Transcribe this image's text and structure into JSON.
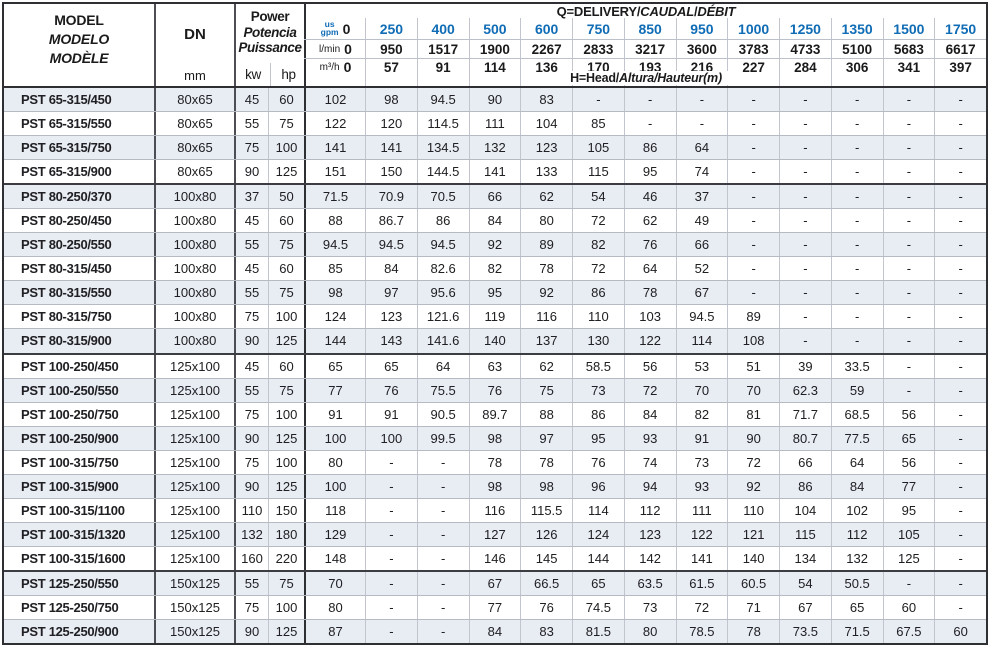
{
  "colors": {
    "accent_blue": "#0f6cb5",
    "row_shade": "#e8ecf3",
    "dark_border": "#2e2f33",
    "light_border": "#c2c5cd"
  },
  "header": {
    "model_lines": [
      "MODEL",
      "MODELO",
      "MODÈLE"
    ],
    "dn_label": "DN",
    "dn_unit": "mm",
    "power_lines": [
      "Power",
      "Potencia",
      "Puissance"
    ],
    "power_units": [
      "kw",
      "hp"
    ],
    "q_title": {
      "p1": "Q=DELIVERY/",
      "p2": "CAUDAL",
      "p3": "/",
      "p4": "DÉBIT"
    },
    "h_label": {
      "p1": "H=Head/",
      "p2": "Altura/Hauteur",
      "p3": "(m)"
    },
    "q_rows": [
      {
        "id": "gpm",
        "unit_stack": [
          "us",
          "gpm"
        ],
        "values": [
          "0",
          "250",
          "400",
          "500",
          "600",
          "750",
          "850",
          "950",
          "1000",
          "1250",
          "1350",
          "1500",
          "1750"
        ]
      },
      {
        "id": "lmin",
        "unit": "l/min",
        "values": [
          "0",
          "950",
          "1517",
          "1900",
          "2267",
          "2833",
          "3217",
          "3600",
          "3783",
          "4733",
          "5100",
          "5683",
          "6617"
        ]
      },
      {
        "id": "m3h",
        "unit": "m³/h",
        "values": [
          "0",
          "57",
          "91",
          "114",
          "136",
          "170",
          "193",
          "216",
          "227",
          "284",
          "306",
          "341",
          "397"
        ]
      }
    ]
  },
  "rows": [
    {
      "model": "PST 65-315/450",
      "dn": "80x65",
      "kw": "45",
      "hp": "60",
      "group": false,
      "head": [
        "102",
        "98",
        "94.5",
        "90",
        "83",
        "-",
        "-",
        "-",
        "-",
        "-",
        "-",
        "-",
        "-"
      ]
    },
    {
      "model": "PST 65-315/550",
      "dn": "80x65",
      "kw": "55",
      "hp": "75",
      "group": false,
      "head": [
        "122",
        "120",
        "114.5",
        "111",
        "104",
        "85",
        "-",
        "-",
        "-",
        "-",
        "-",
        "-",
        "-"
      ]
    },
    {
      "model": "PST 65-315/750",
      "dn": "80x65",
      "kw": "75",
      "hp": "100",
      "group": false,
      "head": [
        "141",
        "141",
        "134.5",
        "132",
        "123",
        "105",
        "86",
        "64",
        "-",
        "-",
        "-",
        "-",
        "-"
      ]
    },
    {
      "model": "PST 65-315/900",
      "dn": "80x65",
      "kw": "90",
      "hp": "125",
      "group": false,
      "head": [
        "151",
        "150",
        "144.5",
        "141",
        "133",
        "115",
        "95",
        "74",
        "-",
        "-",
        "-",
        "-",
        "-"
      ]
    },
    {
      "model": "PST 80-250/370",
      "dn": "100x80",
      "kw": "37",
      "hp": "50",
      "group": true,
      "head": [
        "71.5",
        "70.9",
        "70.5",
        "66",
        "62",
        "54",
        "46",
        "37",
        "-",
        "-",
        "-",
        "-",
        "-"
      ]
    },
    {
      "model": "PST 80-250/450",
      "dn": "100x80",
      "kw": "45",
      "hp": "60",
      "group": false,
      "head": [
        "88",
        "86.7",
        "86",
        "84",
        "80",
        "72",
        "62",
        "49",
        "-",
        "-",
        "-",
        "-",
        "-"
      ]
    },
    {
      "model": "PST 80-250/550",
      "dn": "100x80",
      "kw": "55",
      "hp": "75",
      "group": false,
      "head": [
        "94.5",
        "94.5",
        "94.5",
        "92",
        "89",
        "82",
        "76",
        "66",
        "-",
        "-",
        "-",
        "-",
        "-"
      ]
    },
    {
      "model": "PST 80-315/450",
      "dn": "100x80",
      "kw": "45",
      "hp": "60",
      "group": false,
      "head": [
        "85",
        "84",
        "82.6",
        "82",
        "78",
        "72",
        "64",
        "52",
        "-",
        "-",
        "-",
        "-",
        "-"
      ]
    },
    {
      "model": "PST 80-315/550",
      "dn": "100x80",
      "kw": "55",
      "hp": "75",
      "group": false,
      "head": [
        "98",
        "97",
        "95.6",
        "95",
        "92",
        "86",
        "78",
        "67",
        "-",
        "-",
        "-",
        "-",
        "-"
      ]
    },
    {
      "model": "PST 80-315/750",
      "dn": "100x80",
      "kw": "75",
      "hp": "100",
      "group": false,
      "head": [
        "124",
        "123",
        "121.6",
        "119",
        "116",
        "110",
        "103",
        "94.5",
        "89",
        "-",
        "-",
        "-",
        "-"
      ]
    },
    {
      "model": "PST 80-315/900",
      "dn": "100x80",
      "kw": "90",
      "hp": "125",
      "group": false,
      "head": [
        "144",
        "143",
        "141.6",
        "140",
        "137",
        "130",
        "122",
        "114",
        "108",
        "-",
        "-",
        "-",
        "-"
      ]
    },
    {
      "model": "PST 100-250/450",
      "dn": "125x100",
      "kw": "45",
      "hp": "60",
      "group": true,
      "head": [
        "65",
        "65",
        "64",
        "63",
        "62",
        "58.5",
        "56",
        "53",
        "51",
        "39",
        "33.5",
        "-",
        "-"
      ]
    },
    {
      "model": "PST 100-250/550",
      "dn": "125x100",
      "kw": "55",
      "hp": "75",
      "group": false,
      "head": [
        "77",
        "76",
        "75.5",
        "76",
        "75",
        "73",
        "72",
        "70",
        "70",
        "62.3",
        "59",
        "-",
        "-"
      ]
    },
    {
      "model": "PST 100-250/750",
      "dn": "125x100",
      "kw": "75",
      "hp": "100",
      "group": false,
      "head": [
        "91",
        "91",
        "90.5",
        "89.7",
        "88",
        "86",
        "84",
        "82",
        "81",
        "71.7",
        "68.5",
        "56",
        "-"
      ]
    },
    {
      "model": "PST 100-250/900",
      "dn": "125x100",
      "kw": "90",
      "hp": "125",
      "group": false,
      "head": [
        "100",
        "100",
        "99.5",
        "98",
        "97",
        "95",
        "93",
        "91",
        "90",
        "80.7",
        "77.5",
        "65",
        "-"
      ]
    },
    {
      "model": "PST 100-315/750",
      "dn": "125x100",
      "kw": "75",
      "hp": "100",
      "group": false,
      "head": [
        "80",
        "-",
        "-",
        "78",
        "78",
        "76",
        "74",
        "73",
        "72",
        "66",
        "64",
        "56",
        "-"
      ]
    },
    {
      "model": "PST 100-315/900",
      "dn": "125x100",
      "kw": "90",
      "hp": "125",
      "group": false,
      "head": [
        "100",
        "-",
        "-",
        "98",
        "98",
        "96",
        "94",
        "93",
        "92",
        "86",
        "84",
        "77",
        "-"
      ]
    },
    {
      "model": "PST 100-315/1100",
      "dn": "125x100",
      "kw": "110",
      "hp": "150",
      "group": false,
      "head": [
        "118",
        "-",
        "-",
        "116",
        "115.5",
        "114",
        "112",
        "111",
        "110",
        "104",
        "102",
        "95",
        "-"
      ]
    },
    {
      "model": "PST 100-315/1320",
      "dn": "125x100",
      "kw": "132",
      "hp": "180",
      "group": false,
      "head": [
        "129",
        "-",
        "-",
        "127",
        "126",
        "124",
        "123",
        "122",
        "121",
        "115",
        "112",
        "105",
        "-"
      ]
    },
    {
      "model": "PST 100-315/1600",
      "dn": "125x100",
      "kw": "160",
      "hp": "220",
      "group": false,
      "head": [
        "148",
        "-",
        "-",
        "146",
        "145",
        "144",
        "142",
        "141",
        "140",
        "134",
        "132",
        "125",
        "-"
      ]
    },
    {
      "model": "PST 125-250/550",
      "dn": "150x125",
      "kw": "55",
      "hp": "75",
      "group": true,
      "head": [
        "70",
        "-",
        "-",
        "67",
        "66.5",
        "65",
        "63.5",
        "61.5",
        "60.5",
        "54",
        "50.5",
        "-",
        "-"
      ]
    },
    {
      "model": "PST 125-250/750",
      "dn": "150x125",
      "kw": "75",
      "hp": "100",
      "group": false,
      "head": [
        "80",
        "-",
        "-",
        "77",
        "76",
        "74.5",
        "73",
        "72",
        "71",
        "67",
        "65",
        "60",
        "-"
      ]
    },
    {
      "model": "PST 125-250/900",
      "dn": "150x125",
      "kw": "90",
      "hp": "125",
      "group": false,
      "head": [
        "87",
        "-",
        "-",
        "84",
        "83",
        "81.5",
        "80",
        "78.5",
        "78",
        "73.5",
        "71.5",
        "67.5",
        "60"
      ]
    }
  ]
}
